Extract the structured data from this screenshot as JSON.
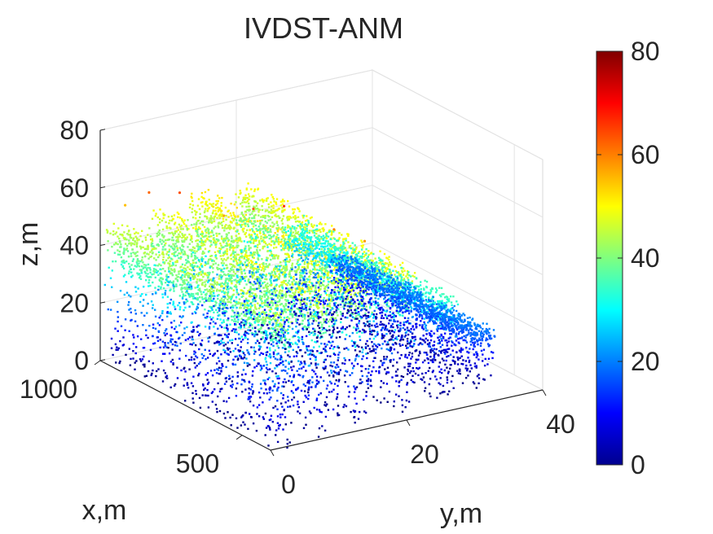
{
  "chart_data": {
    "type": "scatter3d",
    "title": "IVDST-ANM",
    "xlabel": "x,m",
    "ylabel": "y,m",
    "zlabel": "z,m",
    "xlim": [
      400,
      1000
    ],
    "ylim": [
      0,
      40
    ],
    "zlim": [
      0,
      80
    ],
    "x_ticks": [
      {
        "value": 500,
        "label": "500"
      },
      {
        "value": 1000,
        "label": "1000"
      }
    ],
    "y_ticks": [
      {
        "value": 0,
        "label": "0"
      },
      {
        "value": 20,
        "label": "20"
      },
      {
        "value": 40,
        "label": "40"
      }
    ],
    "z_ticks": [
      {
        "value": 0,
        "label": "0"
      },
      {
        "value": 20,
        "label": "20"
      },
      {
        "value": 40,
        "label": "40"
      },
      {
        "value": 60,
        "label": "60"
      },
      {
        "value": 80,
        "label": "80"
      }
    ],
    "grid": true,
    "colormap": "jet",
    "color_by": "z",
    "colorbar": {
      "range": [
        0,
        80
      ],
      "ticks": [
        {
          "value": 0,
          "label": "0"
        },
        {
          "value": 20,
          "label": "20"
        },
        {
          "value": 40,
          "label": "40"
        },
        {
          "value": 60,
          "label": "60"
        },
        {
          "value": 80,
          "label": "80"
        }
      ]
    },
    "point_cloud_rows": [
      {
        "name": "row-1",
        "y": 2,
        "x_range": [
          380,
          1000
        ],
        "z_top": 45
      },
      {
        "name": "row-2",
        "y": 8,
        "x_range": [
          390,
          990
        ],
        "z_top": 48
      },
      {
        "name": "row-3",
        "y": 14,
        "x_range": [
          400,
          1000
        ],
        "z_top": 50
      },
      {
        "name": "row-4",
        "y": 21,
        "x_range": [
          420,
          1000
        ],
        "z_top": 48
      },
      {
        "name": "row-5",
        "y": 28,
        "x_range": [
          440,
          990
        ],
        "z_top": 34
      },
      {
        "name": "row-6",
        "y": 34,
        "x_range": [
          460,
          980
        ],
        "z_top": 20
      }
    ],
    "outliers": [
      {
        "x": 900,
        "y": 3,
        "z": 62
      },
      {
        "x": 840,
        "y": 5,
        "z": 64
      },
      {
        "x": 700,
        "y": 10,
        "z": 63
      },
      {
        "x": 640,
        "y": 12,
        "z": 66
      },
      {
        "x": 560,
        "y": 16,
        "z": 60
      },
      {
        "x": 780,
        "y": 9,
        "z": 57
      },
      {
        "x": 960,
        "y": 2,
        "z": 55
      },
      {
        "x": 500,
        "y": 18,
        "z": 58
      }
    ]
  }
}
